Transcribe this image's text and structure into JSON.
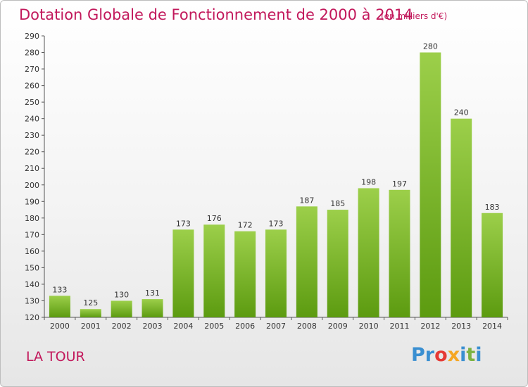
{
  "header": {
    "title": "Dotation Globale de Fonctionnement de 2000 à 2014",
    "unit": "(en milliers d'€)"
  },
  "footer": {
    "commune": "LA TOUR",
    "logo": [
      "P",
      "r",
      "o",
      "x",
      "i",
      "t",
      "i"
    ],
    "logo_colors": [
      "#3a8fd1",
      "#3a8fd1",
      "#e53935",
      "#f5a623",
      "#3a8fd1",
      "#7cb342",
      "#3a8fd1"
    ]
  },
  "colors": {
    "bar_top": "#9ccf4a",
    "bar_bottom": "#5c9b10",
    "text": "#c2185b"
  },
  "chart_data": {
    "type": "bar",
    "title": "Dotation Globale de Fonctionnement de 2000 à 2014",
    "subtitle": "(en milliers d'€)",
    "xlabel": "",
    "ylabel": "",
    "categories": [
      "2000",
      "2001",
      "2002",
      "2003",
      "2004",
      "2005",
      "2006",
      "2007",
      "2008",
      "2009",
      "2010",
      "2011",
      "2012",
      "2013",
      "2014"
    ],
    "values": [
      133,
      125,
      130,
      131,
      173,
      176,
      172,
      173,
      187,
      185,
      198,
      197,
      280,
      240,
      183
    ],
    "ylim": [
      120,
      290
    ],
    "yticks": [
      120,
      130,
      140,
      150,
      160,
      170,
      180,
      190,
      200,
      210,
      220,
      230,
      240,
      250,
      260,
      270,
      280,
      290
    ],
    "grid": false,
    "data_labels": true
  }
}
